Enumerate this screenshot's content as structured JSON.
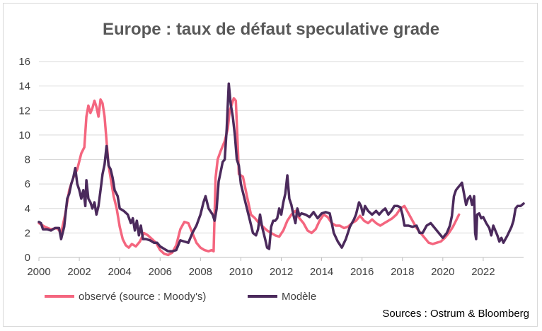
{
  "chart_data": {
    "type": "line",
    "title": "Europe : taux de défaut speculative grade",
    "xlabel": "",
    "ylabel": "",
    "xlim": [
      2000,
      2024
    ],
    "ylim": [
      0,
      16
    ],
    "yticks": [
      "0",
      "2",
      "4",
      "6",
      "8",
      "10",
      "12",
      "14",
      "16"
    ],
    "xticks": [
      "2000",
      "2002",
      "2004",
      "2006",
      "2008",
      "2010",
      "2012",
      "2014",
      "2016",
      "2018",
      "2020",
      "2022"
    ],
    "grid": true,
    "legend_position": "bottom-left",
    "source": "Sources : Ostrum & Bloomberg",
    "series": [
      {
        "name": "observé (source : Moody's)",
        "color": "#f4667f",
        "points": [
          [
            2000.0,
            2.8
          ],
          [
            2000.3,
            2.5
          ],
          [
            2000.6,
            2.3
          ],
          [
            2000.9,
            2.4
          ],
          [
            2001.1,
            2.0
          ],
          [
            2001.3,
            3.5
          ],
          [
            2001.5,
            5.5
          ],
          [
            2001.7,
            6.5
          ],
          [
            2001.9,
            7.2
          ],
          [
            2002.1,
            8.5
          ],
          [
            2002.25,
            9.0
          ],
          [
            2002.35,
            11.5
          ],
          [
            2002.45,
            12.4
          ],
          [
            2002.55,
            11.8
          ],
          [
            2002.65,
            12.2
          ],
          [
            2002.75,
            12.8
          ],
          [
            2002.85,
            12.3
          ],
          [
            2002.95,
            11.5
          ],
          [
            2003.05,
            12.9
          ],
          [
            2003.15,
            12.6
          ],
          [
            2003.25,
            11.5
          ],
          [
            2003.35,
            9.5
          ],
          [
            2003.45,
            7.5
          ],
          [
            2003.55,
            6.5
          ],
          [
            2003.7,
            5.0
          ],
          [
            2003.85,
            4.0
          ],
          [
            2004.0,
            2.5
          ],
          [
            2004.15,
            1.5
          ],
          [
            2004.3,
            1.0
          ],
          [
            2004.45,
            0.8
          ],
          [
            2004.6,
            1.1
          ],
          [
            2004.8,
            0.9
          ],
          [
            2005.0,
            1.3
          ],
          [
            2005.2,
            2.0
          ],
          [
            2005.4,
            1.8
          ],
          [
            2005.6,
            1.5
          ],
          [
            2005.8,
            1.2
          ],
          [
            2006.0,
            0.6
          ],
          [
            2006.2,
            0.3
          ],
          [
            2006.4,
            0.2
          ],
          [
            2006.6,
            0.4
          ],
          [
            2006.8,
            1.0
          ],
          [
            2007.0,
            2.3
          ],
          [
            2007.2,
            2.9
          ],
          [
            2007.4,
            2.8
          ],
          [
            2007.6,
            2.0
          ],
          [
            2007.8,
            1.2
          ],
          [
            2008.0,
            0.8
          ],
          [
            2008.2,
            0.6
          ],
          [
            2008.4,
            0.5
          ],
          [
            2008.55,
            0.6
          ],
          [
            2008.65,
            0.5
          ],
          [
            2008.7,
            3.5
          ],
          [
            2008.75,
            6.5
          ],
          [
            2008.85,
            8.0
          ],
          [
            2009.0,
            8.7
          ],
          [
            2009.2,
            9.5
          ],
          [
            2009.35,
            10.5
          ],
          [
            2009.45,
            12.0
          ],
          [
            2009.55,
            12.5
          ],
          [
            2009.65,
            13.0
          ],
          [
            2009.75,
            12.8
          ],
          [
            2009.85,
            9.0
          ],
          [
            2009.9,
            6.8
          ],
          [
            2010.1,
            6.6
          ],
          [
            2010.3,
            5.0
          ],
          [
            2010.5,
            3.5
          ],
          [
            2010.7,
            3.2
          ],
          [
            2010.9,
            2.8
          ],
          [
            2011.1,
            2.5
          ],
          [
            2011.3,
            2.2
          ],
          [
            2011.5,
            2.0
          ],
          [
            2011.7,
            1.8
          ],
          [
            2011.9,
            1.7
          ],
          [
            2012.1,
            2.2
          ],
          [
            2012.3,
            3.0
          ],
          [
            2012.5,
            3.5
          ],
          [
            2012.7,
            3.8
          ],
          [
            2012.9,
            3.2
          ],
          [
            2013.1,
            2.8
          ],
          [
            2013.3,
            2.2
          ],
          [
            2013.5,
            2.0
          ],
          [
            2013.7,
            2.3
          ],
          [
            2013.9,
            3.0
          ],
          [
            2014.1,
            3.5
          ],
          [
            2014.3,
            3.3
          ],
          [
            2014.5,
            2.8
          ],
          [
            2014.7,
            2.6
          ],
          [
            2014.9,
            2.6
          ],
          [
            2015.1,
            2.4
          ],
          [
            2015.3,
            2.5
          ],
          [
            2015.5,
            2.8
          ],
          [
            2015.7,
            3.0
          ],
          [
            2015.9,
            3.4
          ],
          [
            2016.1,
            3.0
          ],
          [
            2016.3,
            2.8
          ],
          [
            2016.5,
            3.1
          ],
          [
            2016.7,
            2.8
          ],
          [
            2016.9,
            2.6
          ],
          [
            2017.1,
            2.8
          ],
          [
            2017.3,
            3.0
          ],
          [
            2017.5,
            3.2
          ],
          [
            2017.7,
            3.5
          ],
          [
            2017.9,
            4.0
          ],
          [
            2018.1,
            4.2
          ],
          [
            2018.3,
            3.6
          ],
          [
            2018.5,
            3.0
          ],
          [
            2018.7,
            2.4
          ],
          [
            2018.9,
            2.0
          ],
          [
            2019.1,
            1.6
          ],
          [
            2019.3,
            1.2
          ],
          [
            2019.5,
            1.1
          ],
          [
            2019.7,
            1.2
          ],
          [
            2019.9,
            1.3
          ],
          [
            2020.1,
            1.6
          ],
          [
            2020.3,
            2.0
          ],
          [
            2020.5,
            2.5
          ],
          [
            2020.65,
            3.0
          ],
          [
            2020.8,
            3.5
          ]
        ]
      },
      {
        "name": "Modèle",
        "color": "#4b2a5c",
        "points": [
          [
            2000.0,
            2.9
          ],
          [
            2000.1,
            2.8
          ],
          [
            2000.2,
            2.3
          ],
          [
            2000.4,
            2.3
          ],
          [
            2000.6,
            2.2
          ],
          [
            2000.8,
            2.4
          ],
          [
            2001.0,
            2.4
          ],
          [
            2001.1,
            1.5
          ],
          [
            2001.25,
            2.5
          ],
          [
            2001.4,
            4.8
          ],
          [
            2001.5,
            5.2
          ],
          [
            2001.6,
            6.0
          ],
          [
            2001.7,
            6.5
          ],
          [
            2001.8,
            7.3
          ],
          [
            2001.9,
            6.0
          ],
          [
            2002.0,
            5.5
          ],
          [
            2002.1,
            4.8
          ],
          [
            2002.2,
            5.5
          ],
          [
            2002.3,
            4.2
          ],
          [
            2002.35,
            6.3
          ],
          [
            2002.45,
            4.8
          ],
          [
            2002.55,
            4.5
          ],
          [
            2002.65,
            4.0
          ],
          [
            2002.75,
            4.5
          ],
          [
            2002.85,
            3.5
          ],
          [
            2002.95,
            4.2
          ],
          [
            2003.05,
            5.5
          ],
          [
            2003.15,
            6.8
          ],
          [
            2003.25,
            7.6
          ],
          [
            2003.35,
            9.1
          ],
          [
            2003.45,
            7.5
          ],
          [
            2003.55,
            7.2
          ],
          [
            2003.65,
            6.5
          ],
          [
            2003.75,
            5.5
          ],
          [
            2003.9,
            5.0
          ],
          [
            2004.0,
            4.0
          ],
          [
            2004.2,
            3.8
          ],
          [
            2004.4,
            3.5
          ],
          [
            2004.55,
            2.8
          ],
          [
            2004.65,
            3.2
          ],
          [
            2004.75,
            2.2
          ],
          [
            2004.85,
            3.0
          ],
          [
            2004.95,
            1.8
          ],
          [
            2005.05,
            2.6
          ],
          [
            2005.15,
            1.5
          ],
          [
            2005.3,
            1.5
          ],
          [
            2005.5,
            1.4
          ],
          [
            2005.7,
            1.2
          ],
          [
            2005.85,
            1.2
          ],
          [
            2006.0,
            0.9
          ],
          [
            2006.2,
            0.7
          ],
          [
            2006.4,
            0.5
          ],
          [
            2006.6,
            0.5
          ],
          [
            2006.8,
            0.6
          ],
          [
            2007.0,
            1.4
          ],
          [
            2007.2,
            1.3
          ],
          [
            2007.4,
            1.2
          ],
          [
            2007.6,
            2.0
          ],
          [
            2007.8,
            2.6
          ],
          [
            2008.0,
            3.5
          ],
          [
            2008.15,
            4.5
          ],
          [
            2008.25,
            5.0
          ],
          [
            2008.4,
            4.0
          ],
          [
            2008.6,
            3.5
          ],
          [
            2008.7,
            3.0
          ],
          [
            2008.8,
            4.0
          ],
          [
            2008.9,
            6.2
          ],
          [
            2009.0,
            7.0
          ],
          [
            2009.1,
            7.8
          ],
          [
            2009.2,
            8.0
          ],
          [
            2009.3,
            10.5
          ],
          [
            2009.4,
            14.2
          ],
          [
            2009.5,
            12.5
          ],
          [
            2009.6,
            11.5
          ],
          [
            2009.7,
            10.0
          ],
          [
            2009.8,
            8.0
          ],
          [
            2009.9,
            7.5
          ],
          [
            2010.0,
            6.0
          ],
          [
            2010.15,
            5.0
          ],
          [
            2010.3,
            4.0
          ],
          [
            2010.45,
            3.0
          ],
          [
            2010.6,
            2.0
          ],
          [
            2010.75,
            1.8
          ],
          [
            2010.85,
            2.3
          ],
          [
            2010.95,
            3.5
          ],
          [
            2011.05,
            2.5
          ],
          [
            2011.2,
            1.5
          ],
          [
            2011.3,
            0.8
          ],
          [
            2011.4,
            0.7
          ],
          [
            2011.5,
            2.5
          ],
          [
            2011.6,
            3.0
          ],
          [
            2011.7,
            3.0
          ],
          [
            2011.8,
            3.2
          ],
          [
            2011.9,
            4.0
          ],
          [
            2012.0,
            3.5
          ],
          [
            2012.1,
            4.5
          ],
          [
            2012.2,
            5.2
          ],
          [
            2012.3,
            6.7
          ],
          [
            2012.4,
            4.8
          ],
          [
            2012.5,
            4.3
          ],
          [
            2012.6,
            3.5
          ],
          [
            2012.7,
            2.8
          ],
          [
            2012.8,
            4.0
          ],
          [
            2012.9,
            3.4
          ],
          [
            2013.0,
            3.6
          ],
          [
            2013.2,
            3.5
          ],
          [
            2013.4,
            3.3
          ],
          [
            2013.6,
            3.7
          ],
          [
            2013.8,
            3.2
          ],
          [
            2014.0,
            3.6
          ],
          [
            2014.2,
            3.7
          ],
          [
            2014.4,
            3.6
          ],
          [
            2014.5,
            2.8
          ],
          [
            2014.6,
            2.0
          ],
          [
            2014.8,
            1.3
          ],
          [
            2015.0,
            0.8
          ],
          [
            2015.2,
            1.5
          ],
          [
            2015.4,
            2.5
          ],
          [
            2015.6,
            3.1
          ],
          [
            2015.7,
            3.5
          ],
          [
            2015.85,
            4.5
          ],
          [
            2015.95,
            4.2
          ],
          [
            2016.05,
            3.5
          ],
          [
            2016.15,
            4.2
          ],
          [
            2016.3,
            3.8
          ],
          [
            2016.5,
            3.5
          ],
          [
            2016.7,
            3.8
          ],
          [
            2016.85,
            3.5
          ],
          [
            2017.0,
            3.8
          ],
          [
            2017.15,
            4.0
          ],
          [
            2017.3,
            3.5
          ],
          [
            2017.45,
            3.8
          ],
          [
            2017.6,
            4.2
          ],
          [
            2017.75,
            4.2
          ],
          [
            2017.9,
            4.1
          ],
          [
            2018.0,
            3.5
          ],
          [
            2018.1,
            2.6
          ],
          [
            2018.3,
            2.6
          ],
          [
            2018.5,
            2.5
          ],
          [
            2018.7,
            2.6
          ],
          [
            2018.85,
            2.0
          ],
          [
            2019.0,
            2.0
          ],
          [
            2019.2,
            2.6
          ],
          [
            2019.4,
            2.8
          ],
          [
            2019.6,
            2.4
          ],
          [
            2019.8,
            2.0
          ],
          [
            2020.0,
            1.6
          ],
          [
            2020.2,
            2.0
          ],
          [
            2020.35,
            2.6
          ],
          [
            2020.45,
            3.4
          ],
          [
            2020.55,
            5.0
          ],
          [
            2020.65,
            5.5
          ],
          [
            2020.75,
            5.7
          ],
          [
            2020.85,
            5.9
          ],
          [
            2020.95,
            6.1
          ],
          [
            2021.05,
            5.2
          ],
          [
            2021.15,
            4.3
          ],
          [
            2021.25,
            4.8
          ],
          [
            2021.35,
            5.0
          ],
          [
            2021.45,
            4.3
          ],
          [
            2021.55,
            5.0
          ],
          [
            2021.6,
            2.0
          ],
          [
            2021.65,
            1.5
          ],
          [
            2021.7,
            3.5
          ],
          [
            2021.8,
            3.6
          ],
          [
            2021.9,
            3.2
          ],
          [
            2022.0,
            3.3
          ],
          [
            2022.15,
            2.8
          ],
          [
            2022.3,
            2.4
          ],
          [
            2022.4,
            1.8
          ],
          [
            2022.5,
            2.6
          ],
          [
            2022.6,
            2.2
          ],
          [
            2022.7,
            1.8
          ],
          [
            2022.8,
            1.3
          ],
          [
            2022.9,
            1.6
          ],
          [
            2023.0,
            1.2
          ],
          [
            2023.2,
            1.8
          ],
          [
            2023.4,
            2.5
          ],
          [
            2023.5,
            3.0
          ],
          [
            2023.6,
            4.0
          ],
          [
            2023.7,
            4.2
          ],
          [
            2023.85,
            4.2
          ],
          [
            2024.0,
            4.4
          ]
        ]
      }
    ]
  }
}
